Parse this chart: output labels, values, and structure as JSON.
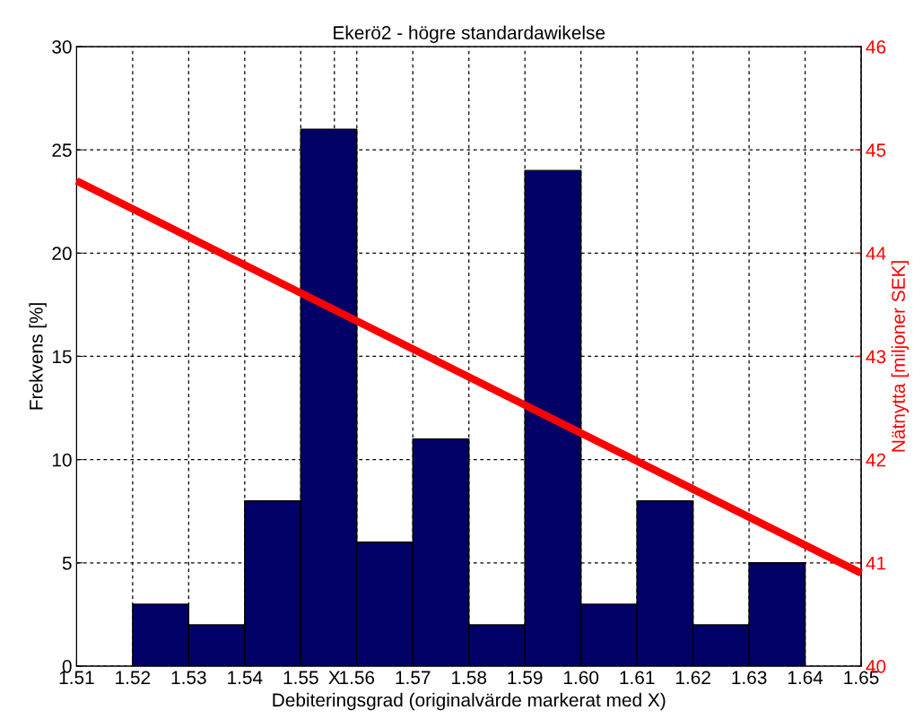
{
  "chart_data": {
    "type": "histogram",
    "title": "Ekerö2 - högre standardawikelse",
    "xlabel": "Debiteringsgrad (originalvärde markerat med X)",
    "ylabel": "Frekvens [%]",
    "y2label": "Nätnytta [miljoner SEK]",
    "bins": [
      1.52,
      1.53,
      1.54,
      1.55,
      1.56,
      1.57,
      1.58,
      1.59,
      1.6,
      1.61,
      1.62,
      1.63,
      1.64
    ],
    "series": [
      {
        "color": "#000066",
        "values": [
          3,
          2,
          8,
          26,
          6,
          11,
          2,
          24,
          3,
          8,
          2,
          5
        ]
      },
      {
        "type": "line",
        "axis": "y2",
        "color": "#ff0000",
        "x": [
          1.51,
          1.65
        ],
        "values": [
          44.7,
          40.9
        ]
      }
    ],
    "xlim": [
      1.51,
      1.65
    ],
    "xticks": [
      1.51,
      1.52,
      1.53,
      1.54,
      1.55,
      {
        "value": 1.556,
        "label": "X"
      },
      {
        "value": 1.56,
        "label": "1.56"
      },
      1.57,
      1.58,
      1.59,
      {
        "value": 1.6,
        "label": "1.60"
      },
      1.61,
      1.62,
      1.63,
      1.64,
      1.65
    ],
    "ylim": [
      0,
      30
    ],
    "yticks": [
      0,
      5,
      10,
      15,
      20,
      25,
      30
    ],
    "y2lim": [
      40,
      46
    ],
    "y2ticks": [
      40,
      41,
      42,
      43,
      44,
      45,
      46
    ],
    "grid": true
  }
}
